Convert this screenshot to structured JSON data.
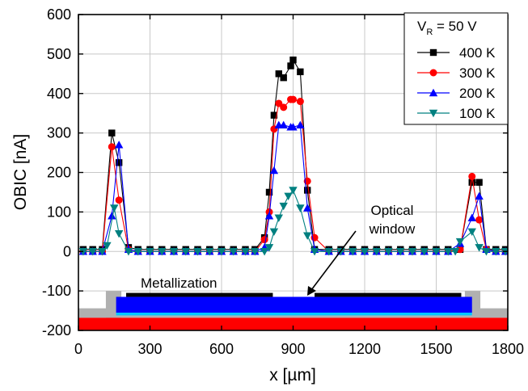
{
  "chart_data": {
    "type": "line",
    "xlabel": "x [µm]",
    "ylabel": "OBIC [nA]",
    "xlim": [
      0,
      1800
    ],
    "ylim": [
      -200,
      600
    ],
    "x_ticks": [
      0,
      300,
      600,
      900,
      1200,
      1500,
      1800
    ],
    "y_ticks": [
      -200,
      -100,
      0,
      100,
      200,
      300,
      400,
      500,
      600
    ],
    "grid": true,
    "legend": {
      "placement": "top-right",
      "title_main": "V",
      "title_sub": "R",
      "title_rest": " = 50 V"
    },
    "series": [
      {
        "name": "400 K",
        "color": "#000000",
        "marker": "square",
        "points": [
          [
            20,
            5
          ],
          [
            60,
            5
          ],
          [
            100,
            5
          ],
          [
            140,
            300
          ],
          [
            170,
            225
          ],
          [
            210,
            10
          ],
          [
            250,
            5
          ],
          [
            300,
            5
          ],
          [
            350,
            5
          ],
          [
            400,
            5
          ],
          [
            450,
            5
          ],
          [
            500,
            5
          ],
          [
            550,
            5
          ],
          [
            600,
            5
          ],
          [
            650,
            5
          ],
          [
            700,
            5
          ],
          [
            740,
            5
          ],
          [
            780,
            35
          ],
          [
            800,
            150
          ],
          [
            820,
            345
          ],
          [
            840,
            450
          ],
          [
            860,
            440
          ],
          [
            890,
            470
          ],
          [
            900,
            485
          ],
          [
            930,
            455
          ],
          [
            960,
            155
          ],
          [
            990,
            5
          ],
          [
            1050,
            5
          ],
          [
            1100,
            5
          ],
          [
            1150,
            5
          ],
          [
            1200,
            5
          ],
          [
            1250,
            5
          ],
          [
            1300,
            5
          ],
          [
            1350,
            5
          ],
          [
            1400,
            5
          ],
          [
            1450,
            5
          ],
          [
            1500,
            5
          ],
          [
            1550,
            5
          ],
          [
            1600,
            5
          ],
          [
            1650,
            175
          ],
          [
            1680,
            175
          ],
          [
            1710,
            5
          ],
          [
            1750,
            5
          ],
          [
            1790,
            5
          ]
        ]
      },
      {
        "name": "300 K",
        "color": "#ff0000",
        "marker": "circle",
        "points": [
          [
            20,
            0
          ],
          [
            60,
            0
          ],
          [
            100,
            0
          ],
          [
            140,
            265
          ],
          [
            170,
            130
          ],
          [
            210,
            5
          ],
          [
            250,
            0
          ],
          [
            300,
            0
          ],
          [
            350,
            0
          ],
          [
            400,
            0
          ],
          [
            450,
            0
          ],
          [
            500,
            0
          ],
          [
            550,
            0
          ],
          [
            600,
            0
          ],
          [
            650,
            0
          ],
          [
            700,
            0
          ],
          [
            740,
            0
          ],
          [
            780,
            30
          ],
          [
            800,
            100
          ],
          [
            820,
            310
          ],
          [
            840,
            375
          ],
          [
            860,
            365
          ],
          [
            890,
            385
          ],
          [
            900,
            385
          ],
          [
            930,
            380
          ],
          [
            960,
            178
          ],
          [
            990,
            35
          ],
          [
            1050,
            0
          ],
          [
            1100,
            0
          ],
          [
            1150,
            0
          ],
          [
            1200,
            0
          ],
          [
            1250,
            0
          ],
          [
            1300,
            0
          ],
          [
            1350,
            0
          ],
          [
            1400,
            0
          ],
          [
            1450,
            0
          ],
          [
            1500,
            0
          ],
          [
            1550,
            0
          ],
          [
            1600,
            5
          ],
          [
            1650,
            190
          ],
          [
            1680,
            80
          ],
          [
            1710,
            5
          ],
          [
            1750,
            0
          ],
          [
            1790,
            0
          ]
        ]
      },
      {
        "name": "200 K",
        "color": "#0000ff",
        "marker": "triangle-up",
        "points": [
          [
            20,
            0
          ],
          [
            60,
            0
          ],
          [
            100,
            0
          ],
          [
            140,
            90
          ],
          [
            170,
            270
          ],
          [
            210,
            5
          ],
          [
            250,
            0
          ],
          [
            300,
            0
          ],
          [
            350,
            0
          ],
          [
            400,
            0
          ],
          [
            450,
            0
          ],
          [
            500,
            0
          ],
          [
            550,
            0
          ],
          [
            600,
            0
          ],
          [
            650,
            0
          ],
          [
            700,
            0
          ],
          [
            740,
            0
          ],
          [
            780,
            10
          ],
          [
            800,
            90
          ],
          [
            820,
            205
          ],
          [
            840,
            320
          ],
          [
            860,
            320
          ],
          [
            890,
            315
          ],
          [
            900,
            315
          ],
          [
            930,
            320
          ],
          [
            960,
            110
          ],
          [
            990,
            5
          ],
          [
            1050,
            0
          ],
          [
            1100,
            0
          ],
          [
            1150,
            0
          ],
          [
            1200,
            0
          ],
          [
            1250,
            0
          ],
          [
            1300,
            0
          ],
          [
            1350,
            0
          ],
          [
            1400,
            0
          ],
          [
            1450,
            0
          ],
          [
            1500,
            0
          ],
          [
            1550,
            0
          ],
          [
            1600,
            20
          ],
          [
            1650,
            85
          ],
          [
            1680,
            140
          ],
          [
            1710,
            5
          ],
          [
            1750,
            0
          ],
          [
            1790,
            0
          ]
        ]
      },
      {
        "name": "100 K",
        "color": "#008080",
        "marker": "triangle-down",
        "points": [
          [
            20,
            0
          ],
          [
            60,
            0
          ],
          [
            100,
            0
          ],
          [
            120,
            15
          ],
          [
            150,
            110
          ],
          [
            170,
            45
          ],
          [
            210,
            0
          ],
          [
            250,
            0
          ],
          [
            300,
            0
          ],
          [
            350,
            0
          ],
          [
            400,
            0
          ],
          [
            450,
            0
          ],
          [
            500,
            0
          ],
          [
            550,
            0
          ],
          [
            600,
            0
          ],
          [
            650,
            0
          ],
          [
            700,
            0
          ],
          [
            740,
            0
          ],
          [
            780,
            0
          ],
          [
            800,
            10
          ],
          [
            820,
            50
          ],
          [
            840,
            85
          ],
          [
            860,
            115
          ],
          [
            880,
            140
          ],
          [
            900,
            155
          ],
          [
            930,
            110
          ],
          [
            960,
            40
          ],
          [
            990,
            0
          ],
          [
            1050,
            0
          ],
          [
            1100,
            0
          ],
          [
            1150,
            0
          ],
          [
            1200,
            0
          ],
          [
            1250,
            0
          ],
          [
            1300,
            0
          ],
          [
            1350,
            0
          ],
          [
            1400,
            0
          ],
          [
            1450,
            0
          ],
          [
            1500,
            0
          ],
          [
            1550,
            0
          ],
          [
            1580,
            0
          ],
          [
            1600,
            25
          ],
          [
            1650,
            50
          ],
          [
            1680,
            10
          ],
          [
            1710,
            0
          ],
          [
            1750,
            0
          ],
          [
            1790,
            0
          ]
        ]
      }
    ],
    "annotations": [
      {
        "text": "Metallization"
      },
      {
        "text": "Optical window"
      }
    ],
    "device_cross_section": {
      "layers": [
        {
          "color": "#ff0000"
        },
        {
          "color": "#00c8ff"
        },
        {
          "color": "#0000ff"
        },
        {
          "color": "#000000"
        },
        {
          "color": "#b0b0b0"
        }
      ]
    }
  }
}
